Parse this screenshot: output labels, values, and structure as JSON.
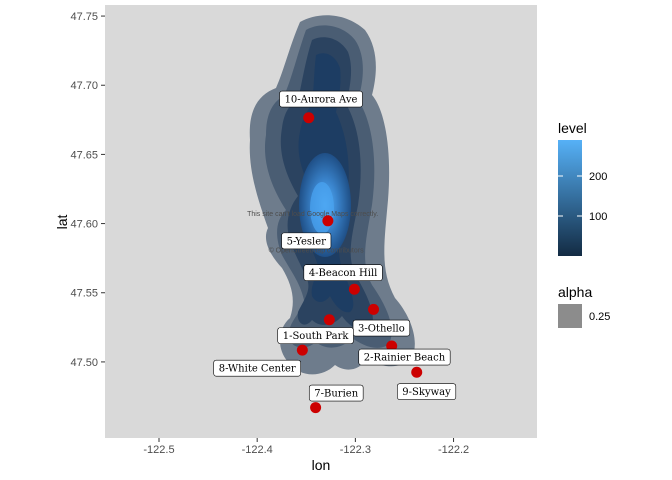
{
  "chart_data": {
    "type": "scatter",
    "xlabel": "lon",
    "ylabel": "lat",
    "xlim": [
      -122.555,
      -122.115
    ],
    "ylim": [
      47.445,
      47.758
    ],
    "x_ticks": [
      -122.5,
      -122.4,
      -122.3,
      -122.2
    ],
    "x_tick_labels": [
      "-122.5",
      "-122.4",
      "-122.3",
      "-122.2"
    ],
    "y_ticks": [
      47.5,
      47.55,
      47.6,
      47.65,
      47.7,
      47.75
    ],
    "y_tick_labels": [
      "47.50",
      "47.55",
      "47.60",
      "47.65",
      "47.70",
      "47.75"
    ],
    "grid": false,
    "panel_color": "#d9d9d9",
    "point_color": "#cc0000",
    "points": [
      {
        "label": "1-South Park",
        "lon": -122.3265,
        "lat": 47.5305
      },
      {
        "label": "2-Rainier Beach",
        "lon": -122.263,
        "lat": 47.5115
      },
      {
        "label": "3-Othello",
        "lon": -122.2815,
        "lat": 47.538
      },
      {
        "label": "4-Beacon Hill",
        "lon": -122.301,
        "lat": 47.5525
      },
      {
        "label": "5-Yesler",
        "lon": -122.328,
        "lat": 47.602
      },
      {
        "label": "7-Burien",
        "lon": -122.3405,
        "lat": 47.467
      },
      {
        "label": "8-White Center",
        "lon": -122.354,
        "lat": 47.5085
      },
      {
        "label": "9-Skyway",
        "lon": -122.2375,
        "lat": 47.4925
      },
      {
        "label": "10-Aurora Ave",
        "lon": -122.3475,
        "lat": 47.6765
      }
    ],
    "label_boxes": [
      {
        "text": "10-Aurora Ave",
        "lon": -122.335,
        "lat": 47.69
      },
      {
        "text": "5-Yesler",
        "lon": -122.35,
        "lat": 47.5875
      },
      {
        "text": "4-Beacon Hill",
        "lon": -122.3125,
        "lat": 47.5645
      },
      {
        "text": "3-Othello",
        "lon": -122.2735,
        "lat": 47.5245
      },
      {
        "text": "1-South Park",
        "lon": -122.3405,
        "lat": 47.519
      },
      {
        "text": "2-Rainier Beach",
        "lon": -122.25,
        "lat": 47.5035
      },
      {
        "text": "8-White Center",
        "lon": -122.4,
        "lat": 47.4955
      },
      {
        "text": "7-Burien",
        "lon": -122.3195,
        "lat": 47.4775
      },
      {
        "text": "9-Skyway",
        "lon": -122.2275,
        "lat": 47.4785
      }
    ],
    "map_text": [
      {
        "text": "This site can't load Google Maps correctly.",
        "lon": -122.3435,
        "lat": 47.6055
      },
      {
        "text": "© OpenStreetMap contributors",
        "lon": -122.34,
        "lat": 47.579
      }
    ],
    "density": {
      "type": "filled-contour",
      "fill_levels": [
        1,
        2,
        3,
        4,
        5
      ],
      "fill_colors": [
        "#6e7c8c",
        "#4a5d73",
        "#2b4360",
        "#1b3f6b",
        "#2a6bb0"
      ],
      "center_color": "#4aa3f0"
    },
    "legend": {
      "position": "right",
      "level": {
        "title": "level",
        "ticks": [
          100,
          200
        ],
        "tick_labels": [
          "100",
          "200"
        ],
        "range": [
          0,
          290
        ],
        "colors": [
          "#132b43",
          "#56b1f7"
        ]
      },
      "alpha": {
        "title": "alpha",
        "label": "0.25",
        "swatch_color": "#8c8c8c"
      }
    }
  }
}
